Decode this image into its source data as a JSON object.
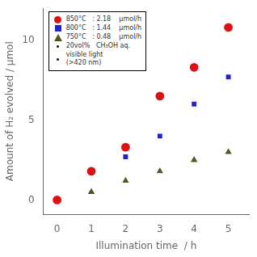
{
  "chart_data": {
    "type": "scatter",
    "x": [
      0,
      1,
      2,
      3,
      4,
      5
    ],
    "series": [
      {
        "name": "850°C   : 2.18    μmol/h",
        "color": "#dd1111",
        "marker": "circle",
        "values": [
          0.0,
          1.8,
          3.3,
          6.5,
          8.3,
          10.8
        ]
      },
      {
        "name": "800°C   : 1.44    μmol/h",
        "color": "#2222cc",
        "marker": "square",
        "values": [
          0.0,
          1.7,
          2.7,
          4.0,
          6.0,
          7.7
        ]
      },
      {
        "name": "750°C   : 0.48    μmol/h",
        "color": "#555522",
        "marker": "triangle",
        "values": [
          0.0,
          0.5,
          1.2,
          1.8,
          2.5,
          3.0
        ]
      },
      {
        "name": "20vol%   CH₃OH aq.",
        "color": "#000000",
        "marker": "dot",
        "values": [
          null,
          null,
          null,
          null,
          null,
          null
        ]
      },
      {
        "name": "visible light\n(>420 nm)",
        "color": "#000000",
        "marker": "dot",
        "values": [
          null,
          null,
          null,
          null,
          null,
          null
        ]
      }
    ],
    "xlabel": "Illumination time  / h",
    "ylabel": "Amount of H₂ evolved / μmol",
    "xlim": [
      -0.4,
      5.6
    ],
    "ylim": [
      -0.9,
      12.0
    ],
    "xticks": [
      0,
      1,
      2,
      3,
      4,
      5
    ],
    "yticks": [
      0,
      5,
      10
    ],
    "grid": false,
    "legend": "upper left"
  }
}
